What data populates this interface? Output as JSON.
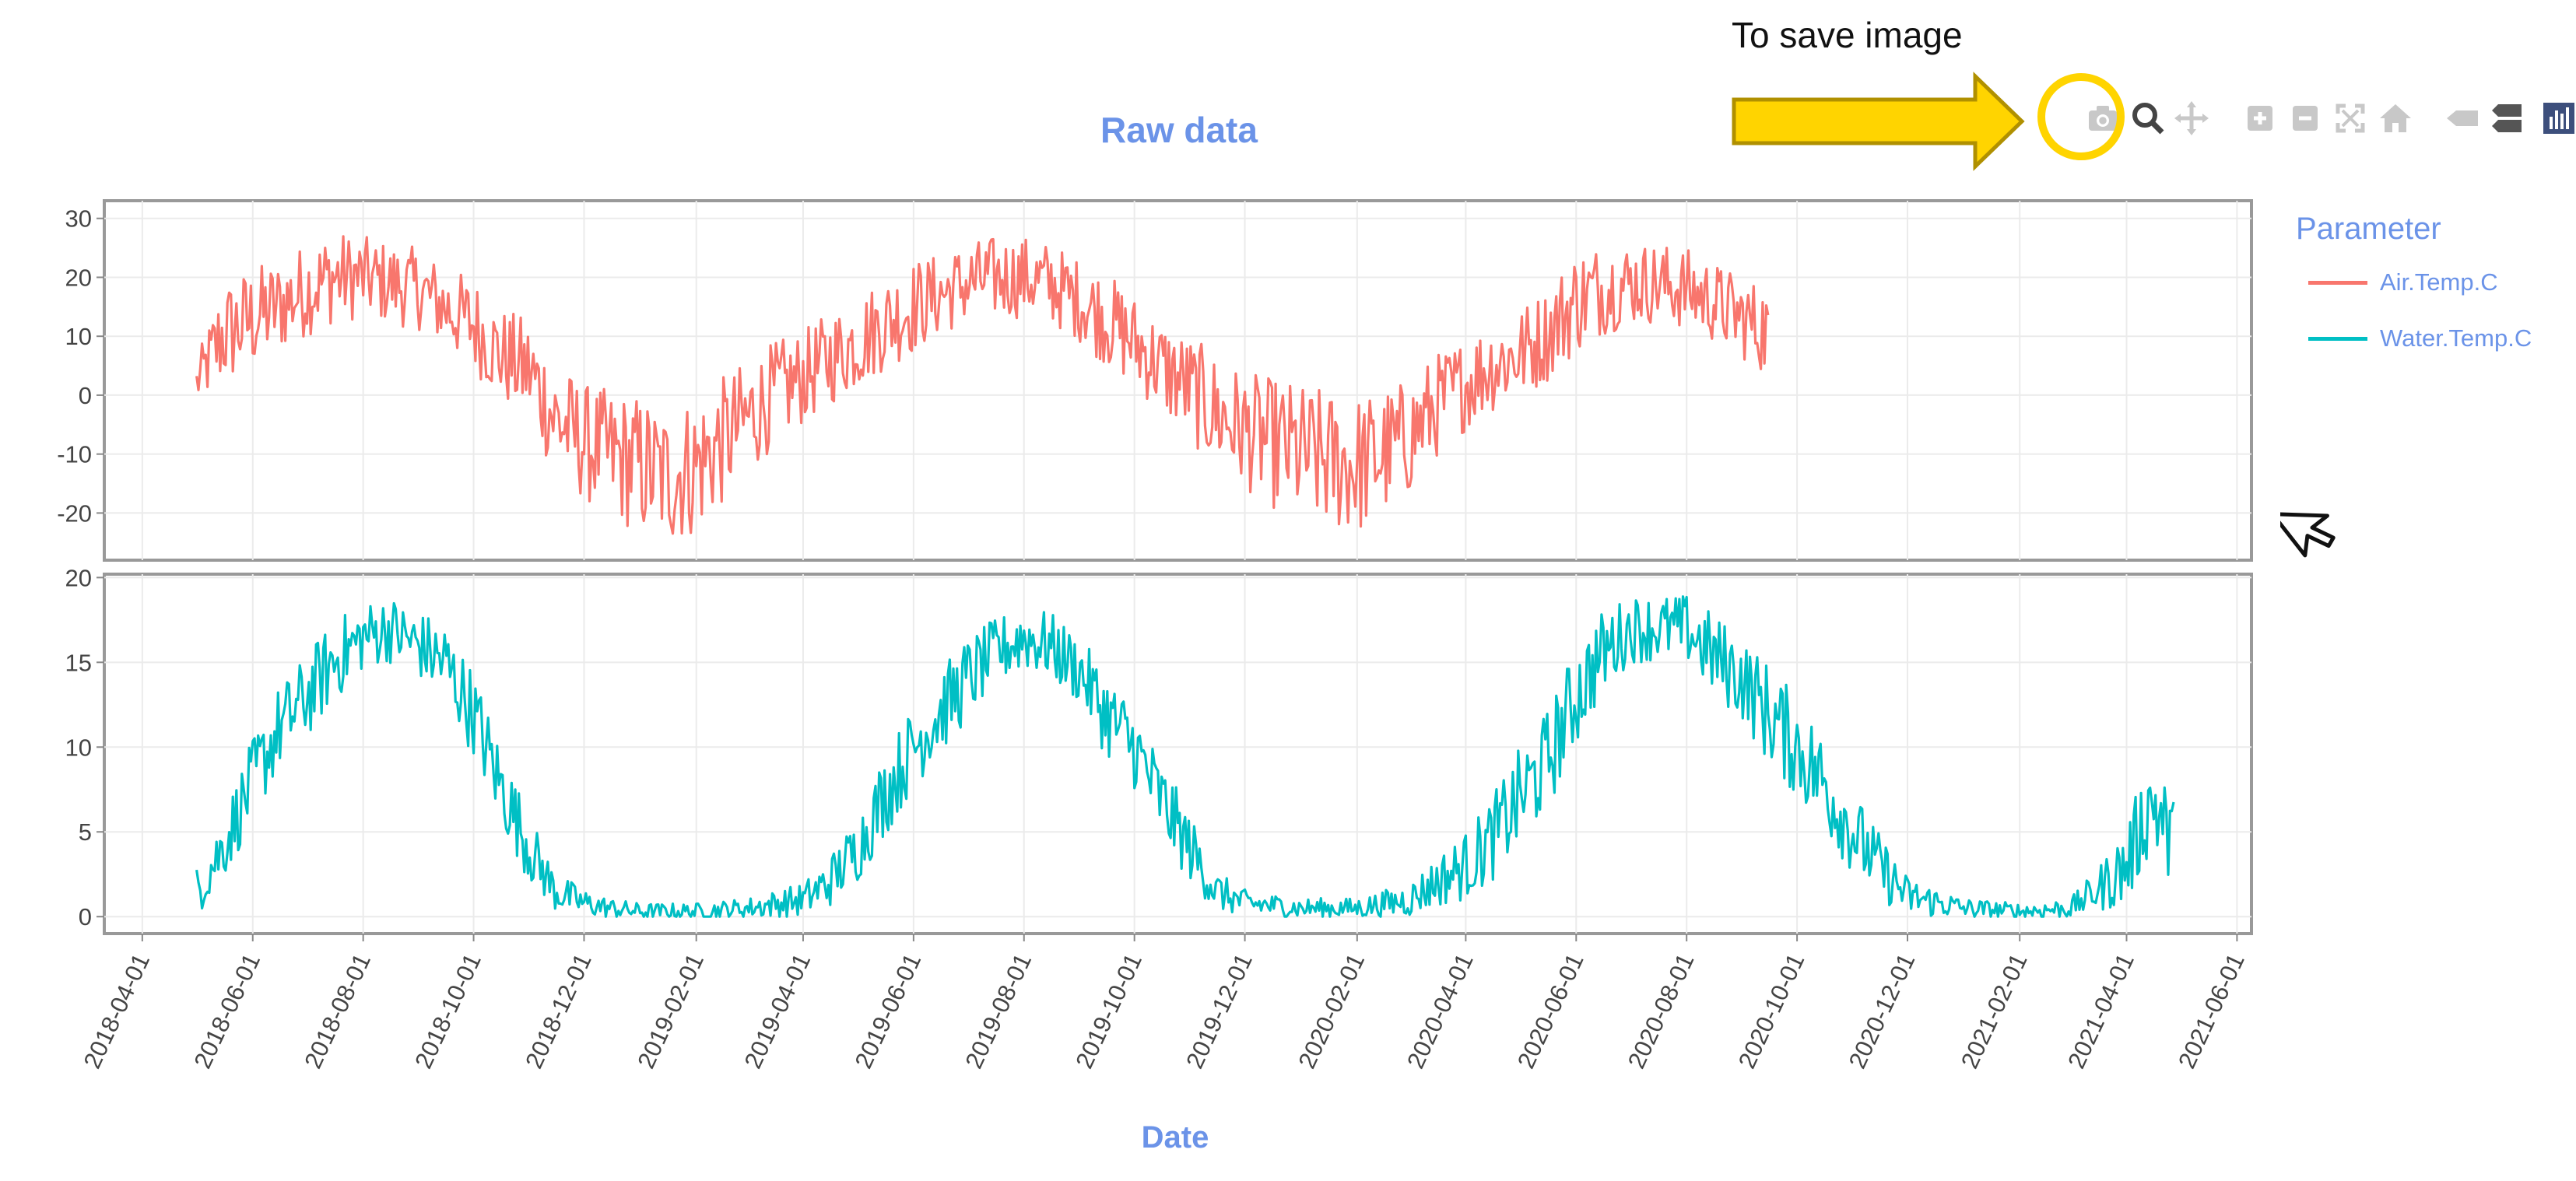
{
  "annotation": {
    "text": "To save image",
    "arrow_color": "#ffd400",
    "ring_color": "#ffd400"
  },
  "modebar": {
    "buttons": [
      {
        "icon": "camera-icon",
        "tooltip": "Download plot as a png"
      },
      {
        "icon": "zoom-icon",
        "tooltip": "Zoom"
      },
      {
        "icon": "pan-icon",
        "tooltip": "Pan"
      },
      {
        "icon": "zoom-in-icon",
        "tooltip": "Zoom in"
      },
      {
        "icon": "zoom-out-icon",
        "tooltip": "Zoom out"
      },
      {
        "icon": "autoscale-icon",
        "tooltip": "Autoscale"
      },
      {
        "icon": "home-icon",
        "tooltip": "Reset axes"
      },
      {
        "icon": "spike-icon",
        "tooltip": "Show closest data on hover"
      },
      {
        "icon": "compare-icon",
        "tooltip": "Compare data on hover"
      },
      {
        "icon": "plotly-logo-icon",
        "tooltip": "Produced with Plotly"
      }
    ]
  },
  "chart_data": {
    "type": "line",
    "title": "Raw data",
    "xlabel": "Date",
    "legend_title": "Parameter",
    "legend_position": "top-right",
    "grid": true,
    "x_ticks": [
      "2018-04-01",
      "2018-06-01",
      "2018-08-01",
      "2018-10-01",
      "2018-12-01",
      "2019-02-01",
      "2019-04-01",
      "2019-06-01",
      "2019-08-01",
      "2019-10-01",
      "2019-12-01",
      "2020-02-01",
      "2020-04-01",
      "2020-06-01",
      "2020-08-01",
      "2020-10-01",
      "2020-12-01",
      "2021-02-01",
      "2021-04-01",
      "2021-06-01"
    ],
    "xlim": [
      "2018-03-11",
      "2021-06-09"
    ],
    "series": [
      {
        "name": "Air.Temp.C",
        "color": "#f8766d",
        "ylim": [
          -28,
          33
        ],
        "y_ticks": [
          30,
          20,
          10,
          0,
          -10,
          -20
        ],
        "x": [
          "2018-05-01",
          "2018-05-15",
          "2018-06-01",
          "2018-06-15",
          "2018-07-01",
          "2018-07-15",
          "2018-08-01",
          "2018-08-15",
          "2018-09-01",
          "2018-09-15",
          "2018-10-01",
          "2018-10-15",
          "2018-11-01",
          "2018-11-15",
          "2018-12-01",
          "2018-12-15",
          "2019-01-01",
          "2019-01-15",
          "2019-02-01",
          "2019-02-15",
          "2019-03-01",
          "2019-03-15",
          "2019-04-01",
          "2019-04-15",
          "2019-05-01",
          "2019-05-15",
          "2019-06-01",
          "2019-06-15",
          "2019-07-01",
          "2019-07-15",
          "2019-08-01",
          "2019-08-15",
          "2019-09-01",
          "2019-09-15",
          "2019-10-01",
          "2019-10-15",
          "2019-11-01",
          "2019-11-15",
          "2019-12-01",
          "2019-12-15",
          "2020-01-01",
          "2020-01-15",
          "2020-02-01",
          "2020-02-15",
          "2020-03-01",
          "2020-03-15",
          "2020-04-01",
          "2020-04-15",
          "2020-05-01",
          "2020-05-15",
          "2020-06-01",
          "2020-06-15",
          "2020-07-01",
          "2020-07-15",
          "2020-08-01",
          "2020-08-15",
          "2020-09-01",
          "2020-09-15"
        ],
        "y": [
          2,
          10,
          13,
          15,
          18,
          20,
          20,
          19,
          18,
          15,
          12,
          7,
          4,
          -4,
          -8,
          -10,
          -12,
          -14,
          -12,
          -8,
          -4,
          0,
          3,
          6,
          9,
          12,
          15,
          17,
          19,
          20,
          20,
          19,
          16,
          13,
          9,
          5,
          1,
          -3,
          -6,
          -8,
          -10,
          -11,
          -12,
          -10,
          -7,
          -2,
          2,
          5,
          7,
          10,
          16,
          18,
          19,
          19,
          18,
          16,
          13,
          11
        ],
        "amplitude": [
          4,
          9,
          9,
          8,
          8,
          8,
          7,
          7,
          7,
          7,
          8,
          8,
          9,
          10,
          10,
          11,
          12,
          12,
          12,
          11,
          10,
          9,
          8,
          8,
          8,
          8,
          8,
          7,
          7,
          7,
          7,
          7,
          7,
          8,
          8,
          8,
          9,
          10,
          10,
          11,
          12,
          12,
          12,
          11,
          10,
          9,
          8,
          8,
          8,
          8,
          9,
          8,
          7,
          7,
          7,
          7,
          7,
          8
        ]
      },
      {
        "name": "Water.Temp.C",
        "color": "#00bfc4",
        "ylim": [
          -1,
          20.2
        ],
        "y_ticks": [
          20,
          15,
          10,
          5,
          0
        ],
        "x": [
          "2018-05-01",
          "2018-05-15",
          "2018-06-01",
          "2018-06-15",
          "2018-07-01",
          "2018-07-15",
          "2018-08-01",
          "2018-08-15",
          "2018-09-01",
          "2018-09-15",
          "2018-10-01",
          "2018-10-15",
          "2018-11-01",
          "2018-11-15",
          "2018-12-01",
          "2018-12-15",
          "2019-01-01",
          "2019-02-01",
          "2019-03-01",
          "2019-04-01",
          "2019-04-15",
          "2019-05-01",
          "2019-05-15",
          "2019-06-01",
          "2019-06-15",
          "2019-07-01",
          "2019-07-15",
          "2019-08-01",
          "2019-08-15",
          "2019-09-01",
          "2019-09-15",
          "2019-10-01",
          "2019-10-15",
          "2019-11-01",
          "2019-11-15",
          "2019-12-01",
          "2020-01-01",
          "2020-02-01",
          "2020-03-01",
          "2020-03-15",
          "2020-04-01",
          "2020-04-15",
          "2020-05-01",
          "2020-05-15",
          "2020-06-01",
          "2020-06-15",
          "2020-07-01",
          "2020-07-15",
          "2020-08-01",
          "2020-08-15",
          "2020-09-01",
          "2020-09-15",
          "2020-10-01",
          "2020-10-15",
          "2020-11-01",
          "2020-11-15",
          "2020-12-01",
          "2021-01-01",
          "2021-02-01",
          "2021-03-01",
          "2021-03-15",
          "2021-04-01",
          "2021-04-15",
          "2021-04-27"
        ],
        "y": [
          1.5,
          4,
          8,
          11,
          13,
          15,
          16.5,
          17,
          16,
          15,
          12,
          8,
          4,
          1.5,
          0.8,
          0.5,
          0.3,
          0.3,
          0.5,
          1,
          2,
          4,
          7,
          10,
          12,
          14,
          15.5,
          16.5,
          16,
          14.5,
          12,
          10,
          7,
          4,
          1.5,
          0.8,
          0.5,
          0.5,
          1,
          2,
          3,
          4.5,
          7,
          9,
          13,
          15.5,
          17,
          17,
          17,
          15.5,
          14,
          12,
          10,
          8,
          5,
          3,
          1.2,
          0.5,
          0.3,
          0.5,
          1.5,
          3,
          7,
          4
        ],
        "amplitude": [
          1.5,
          2,
          2.5,
          2.5,
          2.5,
          2.5,
          2,
          2,
          2,
          2.5,
          2.5,
          2.5,
          2,
          1.2,
          0.8,
          0.6,
          0.5,
          0.5,
          0.6,
          1,
          1.5,
          2,
          2.5,
          2.5,
          2.5,
          2.5,
          2,
          2,
          2,
          2,
          2.5,
          2.5,
          2.5,
          2,
          1.2,
          0.8,
          0.6,
          0.6,
          1,
          1.5,
          2,
          2.5,
          3,
          3,
          3,
          2.5,
          2,
          2,
          2,
          2.5,
          2.5,
          3,
          3,
          3,
          2.5,
          2,
          1.2,
          0.6,
          0.5,
          0.6,
          1.2,
          2.5,
          3,
          3
        ]
      }
    ]
  }
}
